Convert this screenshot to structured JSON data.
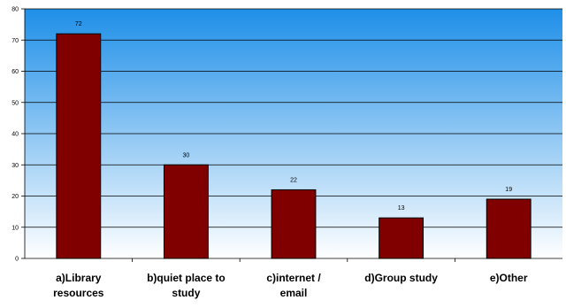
{
  "chart_data": {
    "type": "bar",
    "categories": [
      [
        "a)Library",
        "resources"
      ],
      [
        "b)quiet place to",
        "study"
      ],
      [
        "c)internet /",
        "email"
      ],
      [
        "d)Group study"
      ],
      [
        "e)Other"
      ]
    ],
    "values": [
      72,
      30,
      22,
      13,
      19
    ],
    "value_labels": [
      "72",
      "30",
      "22",
      "13",
      "19"
    ],
    "ylim": [
      0,
      80
    ],
    "yticks": [
      0,
      10,
      20,
      30,
      40,
      50,
      60,
      70,
      80
    ],
    "ytick_labels": [
      "0",
      "10",
      "20",
      "30",
      "40",
      "50",
      "60",
      "70",
      "80"
    ],
    "grid": true,
    "legend": false,
    "colors": {
      "bar_fill": "#800000",
      "bar_stroke": "#000000",
      "plot_bg_top": "#1e8fe8",
      "plot_bg_bottom": "#ffffff",
      "grid": "#000000"
    }
  }
}
